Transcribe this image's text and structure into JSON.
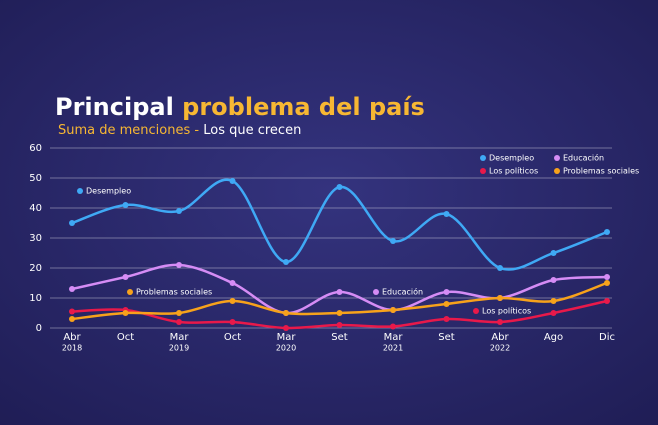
{
  "chart_data": {
    "type": "line",
    "title_parts": [
      "Principal",
      "problema del país"
    ],
    "subtitle_parts": [
      "Suma de menciones -",
      "Los que crecen"
    ],
    "categories": [
      "Abr",
      "Oct",
      "Mar",
      "Oct",
      "Mar",
      "Set",
      "Mar",
      "Set",
      "Abr",
      "Ago",
      "Dic"
    ],
    "year_labels": [
      "2018",
      null,
      "2019",
      null,
      "2020",
      null,
      "2021",
      null,
      "2022",
      null,
      null
    ],
    "ylim": [
      0,
      60
    ],
    "yticks": [
      0,
      10,
      20,
      30,
      40,
      50,
      60
    ],
    "grid": true,
    "smooth": true,
    "legend": "top-right",
    "series": [
      {
        "name": "Desempleo",
        "color": "#3fa9f5",
        "values": [
          35,
          41,
          39,
          49,
          22,
          47,
          29,
          38,
          20,
          25,
          32
        ]
      },
      {
        "name": "Educación",
        "color": "#d58cf5",
        "values": [
          13,
          17,
          21,
          15,
          5,
          12,
          6,
          12,
          10,
          16,
          17
        ]
      },
      {
        "name": "Los políticos",
        "color": "#e8194a",
        "values": [
          5.5,
          6,
          2,
          2,
          0,
          1,
          0.5,
          3,
          2,
          5,
          9
        ]
      },
      {
        "name": "Problemas sociales",
        "color": "#f7a21b",
        "values": [
          3,
          5,
          5,
          9,
          5,
          5,
          6,
          8,
          10,
          9,
          15
        ]
      }
    ]
  }
}
